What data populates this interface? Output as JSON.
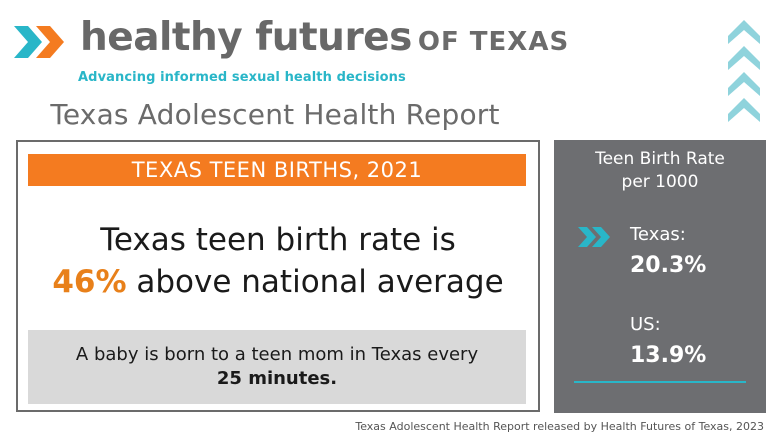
{
  "header": {
    "brand_main": "healthy futures",
    "brand_sub": "OF TEXAS",
    "tagline": "Advancing informed sexual health decisions",
    "report_title": "Texas Adolescent Health Report"
  },
  "main_card": {
    "banner": "TEXAS TEEN BIRTHS, 2021",
    "stat_line1": "Texas teen birth rate is",
    "stat_pct": "46%",
    "stat_line2_rest": " above national average",
    "note_line1": "A baby is born to a teen mom in Texas every",
    "note_line2": "25 minutes."
  },
  "side_panel": {
    "title_line1": "Teen Birth Rate",
    "title_line2": "per 1000",
    "texas_label": "Texas:",
    "texas_value": "20.3%",
    "us_label": "US:",
    "us_value": "13.9%"
  },
  "footer": {
    "source": "Texas Adolescent Health Report released by Health Futures of Texas, 2023"
  },
  "colors": {
    "teal": "#29b6c8",
    "orange": "#f47b20",
    "gray": "#6d6e71",
    "light_teal": "#8fd3dc"
  }
}
